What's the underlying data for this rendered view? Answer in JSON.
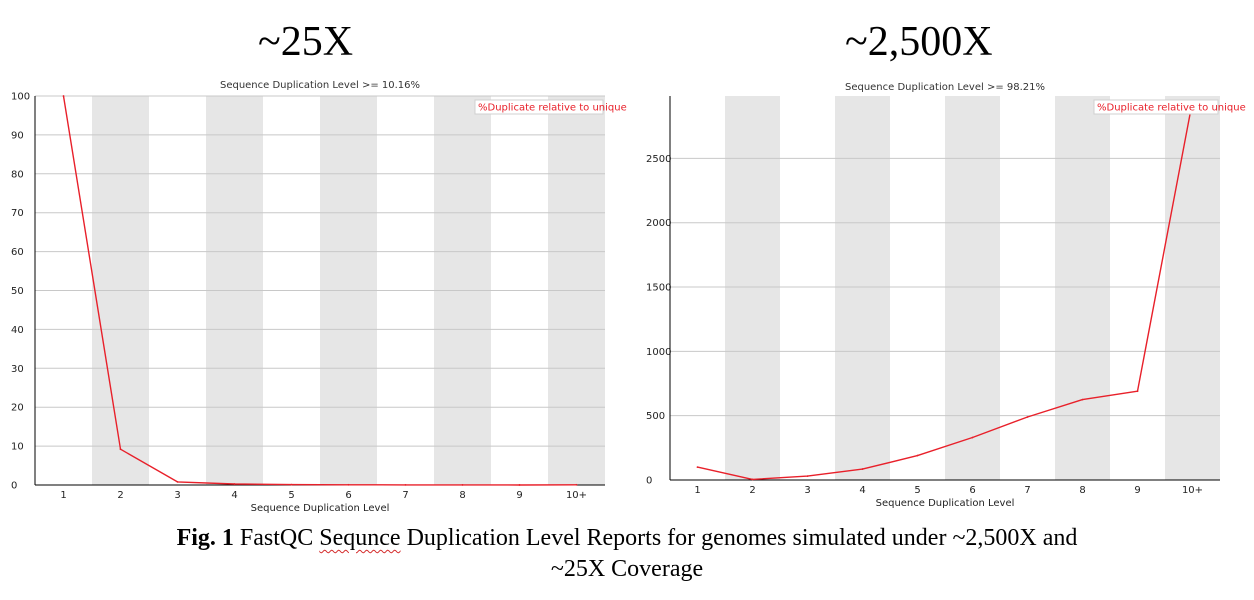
{
  "figure": {
    "heading_left": "~25X",
    "heading_right": "~2,500X",
    "caption": {
      "label": "Fig. 1",
      "text_before": " FastQC ",
      "misspelled_word": "Sequnce",
      "text_after": " Duplication Level Reports for genomes simulated under ~2,500X and",
      "line2": "~25X Coverage"
    }
  },
  "chart_data": [
    {
      "type": "line",
      "title": "Sequence Duplication Level >= 10.16%",
      "xlabel": "Sequence Duplication Level",
      "ylabel": "",
      "categories": [
        "1",
        "2",
        "3",
        "4",
        "5",
        "6",
        "7",
        "8",
        "9",
        "10+"
      ],
      "series": [
        {
          "name": "%Duplicate relative to unique",
          "color": "#e8202a",
          "values": [
            100,
            9.2,
            0.8,
            0.25,
            0.1,
            0.05,
            0.03,
            0.02,
            0.01,
            0.05
          ]
        }
      ],
      "ylim": [
        0,
        100
      ],
      "yticks": [
        0,
        10,
        20,
        30,
        40,
        50,
        60,
        70,
        80,
        90,
        100
      ],
      "grid": true,
      "alternating_band_color": "#e6e6e6",
      "legend_position": "top-right"
    },
    {
      "type": "line",
      "title": "Sequence Duplication Level >= 98.21%",
      "xlabel": "Sequence Duplication Level",
      "ylabel": "",
      "categories": [
        "1",
        "2",
        "3",
        "4",
        "5",
        "6",
        "7",
        "8",
        "9",
        "10+"
      ],
      "series": [
        {
          "name": "%Duplicate relative to unique",
          "color": "#e8202a",
          "values": [
            100,
            5,
            30,
            85,
            190,
            330,
            490,
            625,
            690,
            2945
          ]
        }
      ],
      "ylim": [
        0,
        2985
      ],
      "yticks": [
        0,
        500,
        1000,
        1500,
        2000,
        2500
      ],
      "grid": true,
      "alternating_band_color": "#e6e6e6",
      "legend_position": "top-right"
    }
  ]
}
